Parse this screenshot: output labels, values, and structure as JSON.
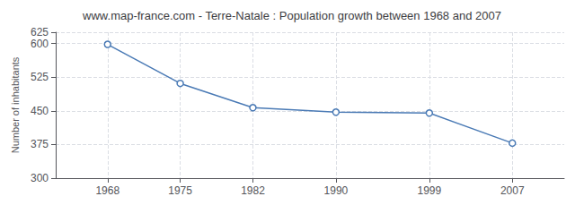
{
  "chart_data": {
    "type": "line",
    "title": "www.map-france.com - Terre-Natale : Population growth between 1968 and 2007",
    "ylabel": "Number of inhabitants",
    "x": [
      1968,
      1975,
      1982,
      1990,
      1999,
      2007
    ],
    "values": [
      598,
      511,
      457,
      447,
      445,
      378
    ],
    "xlim": [
      1963,
      2012
    ],
    "ylim": [
      300,
      625
    ],
    "xticks": [
      1968,
      1975,
      1982,
      1990,
      1999,
      2007
    ],
    "yticks": [
      300,
      375,
      450,
      525,
      600
    ],
    "color": "#4a7ab5",
    "marker": "circle",
    "grid": true
  }
}
